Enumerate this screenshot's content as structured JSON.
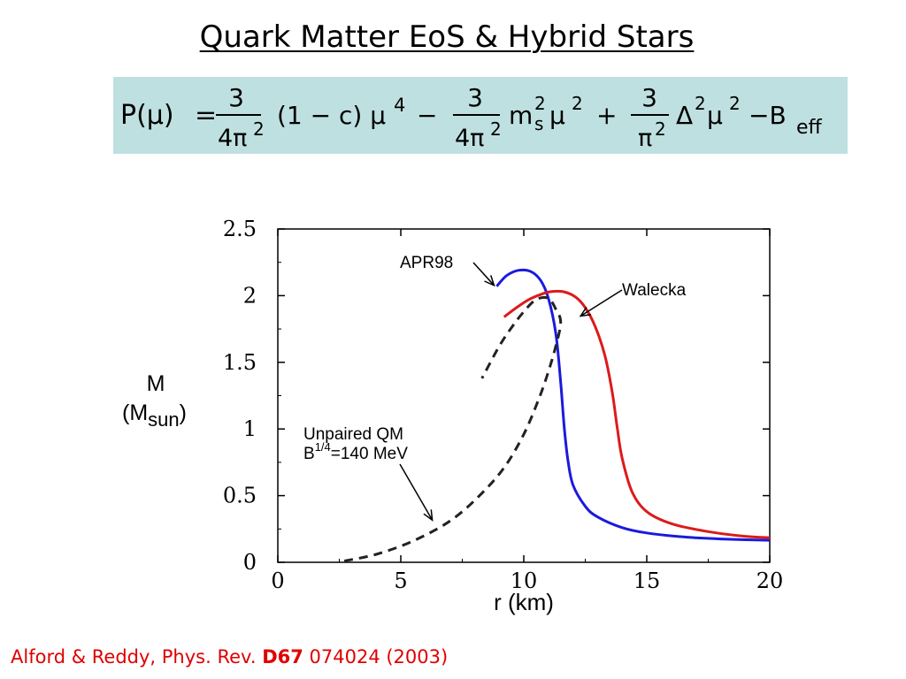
{
  "slide": {
    "title": "Quark Matter EoS & Hybrid Stars",
    "citation_pre": "Alford & Reddy, Phys. Rev. ",
    "citation_vol": "D67",
    "citation_post": " 074024 (2003)"
  },
  "equation": {
    "lhs": "P(μ)",
    "eq": "=",
    "c1": "3",
    "d1": "4π",
    "d1_exp": "2",
    "factor": "(1 − c) μ",
    "factor_exp": "4",
    "minus1": "−",
    "c2": "3",
    "d2": "4π",
    "d2_exp": "2",
    "ms": "m",
    "ms_sup": "2",
    "ms_sub": "s",
    "mu2": "μ",
    "mu2_exp": "2",
    "plus": "+",
    "c3": "3",
    "d3": "π",
    "d3_exp": "2",
    "delta": "Δ",
    "delta_exp": "2",
    "mu3": "μ",
    "mu3_exp": "2",
    "minus2": "−B",
    "beff_sub": "eff"
  },
  "chart_data": {
    "type": "line",
    "xlabel": "r (km)",
    "ylabel": "M",
    "ylabel_unit": "(M",
    "ylabel_unit_sub": "sun",
    "ylabel_unit_close": ")",
    "xlim": [
      0,
      20
    ],
    "ylim": [
      0,
      2.5
    ],
    "xticks": [
      "0",
      "5",
      "10",
      "15",
      "20"
    ],
    "yticks": [
      "0",
      "0.5",
      "1",
      "1.5",
      "2",
      "2.5"
    ],
    "grid": false,
    "colors": {
      "apr98": "#1a1add",
      "walecka": "#dd1a1a",
      "quark": "#222222"
    },
    "series": [
      {
        "name": "APR98",
        "x": [
          8.9,
          9.3,
          9.8,
          10.3,
          10.7,
          11.0,
          11.3,
          11.5,
          11.65,
          11.8,
          12.0,
          12.5,
          13.0,
          14.0,
          15.0,
          16.5,
          18.0,
          20.0
        ],
        "y": [
          2.07,
          2.15,
          2.19,
          2.18,
          2.11,
          1.98,
          1.72,
          1.35,
          1.0,
          0.76,
          0.58,
          0.42,
          0.34,
          0.26,
          0.22,
          0.19,
          0.175,
          0.165
        ]
      },
      {
        "name": "Walecka",
        "x": [
          9.2,
          9.7,
          10.2,
          10.7,
          11.1,
          11.6,
          12.1,
          12.5,
          12.9,
          13.3,
          13.6,
          13.8,
          14.0,
          14.4,
          15.0,
          16.0,
          17.5,
          19.0,
          20.0
        ],
        "y": [
          1.84,
          1.91,
          1.97,
          2.01,
          2.03,
          2.03,
          1.99,
          1.91,
          1.77,
          1.55,
          1.27,
          1.01,
          0.78,
          0.53,
          0.38,
          0.29,
          0.23,
          0.195,
          0.185
        ]
      },
      {
        "name": "Unpaired QM",
        "x": [
          2.7,
          4.0,
          5.5,
          7.0,
          8.2,
          9.2,
          10.0,
          10.6,
          11.0,
          11.3,
          11.5,
          11.3,
          11.0,
          10.5,
          10.0,
          9.5,
          9.0,
          8.3
        ],
        "y": [
          0.01,
          0.06,
          0.16,
          0.31,
          0.5,
          0.71,
          0.96,
          1.22,
          1.43,
          1.62,
          1.8,
          1.9,
          1.98,
          1.97,
          1.88,
          1.76,
          1.62,
          1.38
        ]
      }
    ],
    "annotations": [
      {
        "text": "APR98",
        "points_to": [
          9.8,
          2.11
        ]
      },
      {
        "text": "Walecka",
        "points_to": [
          12.2,
          1.9
        ]
      },
      {
        "line1": "Unpaired QM",
        "line2_base": "B",
        "line2_sup": "1/4",
        "line2_rest": "=140 MeV",
        "points_to": [
          7.0,
          0.35
        ]
      }
    ]
  }
}
